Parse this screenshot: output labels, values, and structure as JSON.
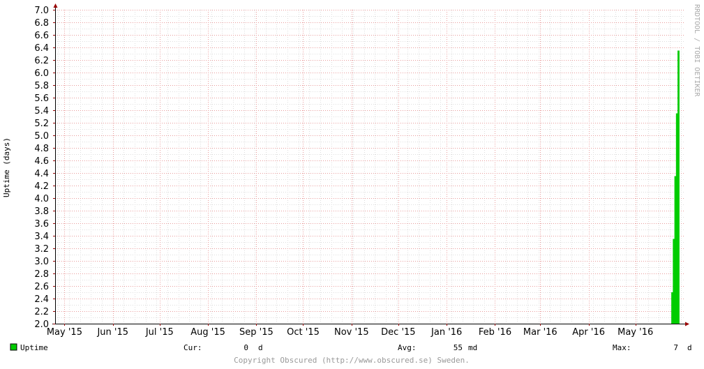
{
  "chart_data": {
    "type": "area",
    "ylabel": "Uptime (days)",
    "ylim": [
      2.0,
      7.0
    ],
    "y_ticks": [
      "2.0",
      "2.2",
      "2.4",
      "2.6",
      "2.8",
      "3.0",
      "3.2",
      "3.4",
      "3.6",
      "3.8",
      "4.0",
      "4.2",
      "4.4",
      "4.6",
      "4.8",
      "5.0",
      "5.2",
      "5.4",
      "5.6",
      "5.8",
      "6.0",
      "6.2",
      "6.4",
      "6.6",
      "6.8",
      "7.0"
    ],
    "x_ticks": [
      "May '15",
      "Jun '15",
      "Jul '15",
      "Aug '15",
      "Sep '15",
      "Oct '15",
      "Nov '15",
      "Dec '15",
      "Jan '16",
      "Feb '16",
      "Mar '16",
      "Apr '16",
      "May '16"
    ],
    "x_range": [
      "2015-04-25",
      "2016-06-01"
    ],
    "grid": true,
    "series": [
      {
        "name": "Uptime",
        "color": "#00cc00",
        "points": [
          {
            "x": "2016-05-24",
            "y": 2.5
          },
          {
            "x": "2016-05-25",
            "y": 3.35
          },
          {
            "x": "2016-05-26",
            "y": 4.35
          },
          {
            "x": "2016-05-27",
            "y": 5.35
          },
          {
            "x": "2016-05-28",
            "y": 6.35
          }
        ]
      }
    ]
  },
  "side_text": "RRDTOOL / TOBI OETIKER",
  "legend": {
    "label": "Uptime",
    "cur_label": "Cur:",
    "cur_value": "0",
    "cur_unit": "d",
    "avg_label": "Avg:",
    "avg_value": "55",
    "avg_unit": "md",
    "max_label": "Max:",
    "max_value": "7",
    "max_unit": "d"
  },
  "footer": "Copyright Obscured (http://www.obscured.se) Sweden."
}
